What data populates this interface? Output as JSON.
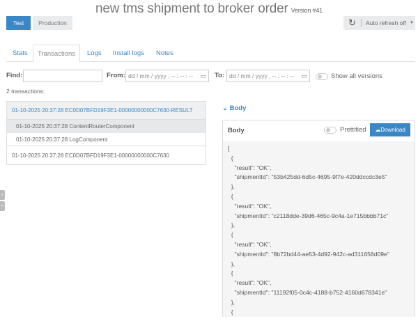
{
  "header": {
    "title": "new tms shipment to broker order",
    "version": "Version #41"
  },
  "env": {
    "test": "Test",
    "production": "Production"
  },
  "refresh": {
    "icon": "refresh-icon",
    "label": "Auto refresh off"
  },
  "tabs": [
    "Stats",
    "Transactions",
    "Logs",
    "Install logs",
    "Notes"
  ],
  "filters": {
    "find_label": "Find:",
    "find_value": "",
    "from_label": "From:",
    "from_placeholder": "dd / mm / yyyy ,  -- : -- : --",
    "to_label": "To:",
    "to_placeholder": "dd / mm / yyyy ,  -- : -- : --",
    "show_all": "Show all versions"
  },
  "count": "2 transactions:",
  "transactions": [
    "01-10-2025 20:37:28 EC0D07BFD19F3E1-00000000000C7630-RESULT",
    "01-10-2025 20:37:28 ContentRouterComponent",
    "01-10-2025 20:37:28 LogComponent",
    "01-10-2025 20:37:28 EC0D07BFD19F3E1-00000000000C7630"
  ],
  "body": {
    "toggle_label": "Body",
    "panel_title": "Body",
    "prettified": "Prettified",
    "download": "Download",
    "lines": [
      "[",
      "  {",
      "    \"result\": \"OK\",",
      "    \"shipmentId\": \"53b425dd-6d5c-4695-9f7e-420ddccdc3e5\"",
      "  },",
      "  {",
      "    \"result\": \"OK\",",
      "    \"shipmentId\": \"c2118dde-39d6-465c-9c4a-1e715bbbb71c\"",
      "  },",
      "  {",
      "    \"result\": \"OK\",",
      "    \"shipmentId\": \"8b72bd44-ae53-4d92-942c-ad311658d09e\"",
      "  },",
      "  {",
      "    \"result\": \"OK\",",
      "    \"shipmentId\": \"11192f05-0c4c-4188-b752-4160d678341e\"",
      "  },",
      "  {"
    ]
  },
  "colors": {
    "accent": "#3a87c8"
  }
}
